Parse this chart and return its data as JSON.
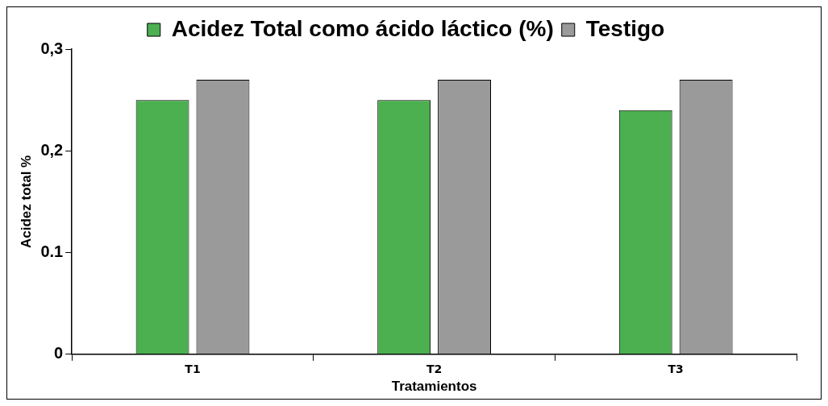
{
  "chart_data": {
    "type": "bar",
    "xlabel": "Tratamientos",
    "ylabel": "Acidez total %",
    "categories": [
      "T1",
      "T2",
      "T3"
    ],
    "series": [
      {
        "name": "Acidez Total como ácido láctico (%)",
        "color": "#4caf50",
        "values": [
          0.25,
          0.25,
          0.24
        ]
      },
      {
        "name": "Testigo",
        "color": "#9a9a9a",
        "values": [
          0.27,
          0.27,
          0.27
        ]
      }
    ],
    "ylim": [
      0,
      0.3
    ],
    "yticks": [
      0,
      {
        "value": 0.1,
        "label": "0.1"
      },
      {
        "value": 0.2,
        "label": "0,2"
      },
      {
        "value": 0.3,
        "label": "0,3"
      }
    ],
    "grid": false,
    "legend": "top"
  }
}
